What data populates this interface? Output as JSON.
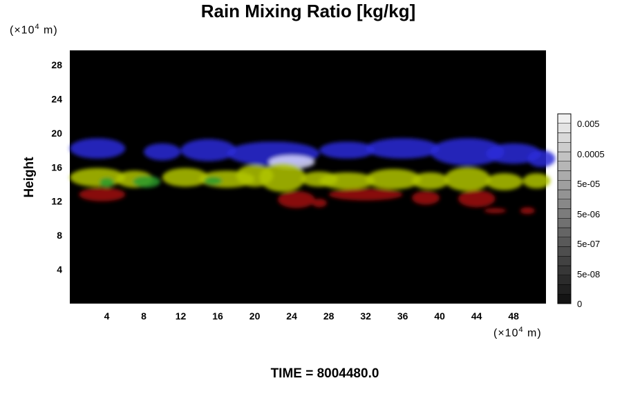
{
  "chart_data": {
    "type": "heatmap",
    "title": "Rain Mixing Ratio [kg/kg]",
    "ylabel": "Height",
    "xlabel": "",
    "x_unit_prefix": "(×10",
    "x_unit_exp": "4",
    "x_unit_suffix": " m)",
    "y_unit_prefix": "(×10",
    "y_unit_exp": "4",
    "y_unit_suffix": " m)",
    "time_label": "TIME = 8004480.0",
    "xlim": [
      0,
      51.5
    ],
    "ylim": [
      0,
      29.7
    ],
    "x_ticks": [
      "4",
      "8",
      "12",
      "16",
      "20",
      "24",
      "28",
      "32",
      "36",
      "40",
      "44",
      "48"
    ],
    "y_ticks": [
      "4",
      "8",
      "12",
      "16",
      "20",
      "24",
      "28"
    ],
    "colorbar_labels": [
      "0.005",
      "0.0005",
      "5e-05",
      "5e-06",
      "5e-07",
      "5e-08",
      "0"
    ],
    "colorbar_levels": 20,
    "background_color": "#000000",
    "layers": [
      {
        "color": "#2a2ad8",
        "blobs": [
          [
            3,
            18.2,
            3,
            1.2
          ],
          [
            10,
            17.8,
            2,
            1
          ],
          [
            15,
            18,
            3,
            1.3
          ],
          [
            22,
            17.6,
            5,
            1.4
          ],
          [
            30,
            18,
            3,
            1
          ],
          [
            36,
            18.2,
            4,
            1.2
          ],
          [
            43,
            17.8,
            4,
            1.6
          ],
          [
            48,
            17.6,
            3,
            1.2
          ],
          [
            51,
            17,
            1.5,
            1
          ]
        ]
      },
      {
        "color": "#d8d8ff",
        "blobs": [
          [
            24,
            16.6,
            2.5,
            0.8
          ]
        ]
      },
      {
        "color": "#b0c400",
        "blobs": [
          [
            3,
            14.8,
            3,
            1.1
          ],
          [
            7,
            14.6,
            2,
            1
          ],
          [
            12.5,
            14.8,
            2.5,
            1.1
          ],
          [
            17,
            14.6,
            3,
            1
          ],
          [
            20,
            15,
            2,
            1.3
          ],
          [
            23,
            14.8,
            2.5,
            1.7
          ],
          [
            27,
            14.6,
            2,
            0.9
          ],
          [
            30,
            14.4,
            3,
            1
          ],
          [
            35,
            14.6,
            3,
            1.2
          ],
          [
            39,
            14.4,
            2,
            1
          ],
          [
            43,
            14.6,
            2.5,
            1.4
          ],
          [
            47,
            14.3,
            2,
            1
          ],
          [
            50.5,
            14.4,
            1.5,
            0.9
          ]
        ]
      },
      {
        "color": "#2a9a2a",
        "blobs": [
          [
            8.3,
            14.3,
            1.5,
            0.7
          ],
          [
            4,
            14.2,
            0.8,
            0.6
          ],
          [
            15.5,
            14.4,
            1,
            0.5
          ]
        ]
      },
      {
        "color": "#a01010",
        "blobs": [
          [
            3.5,
            12.8,
            2.5,
            0.8
          ],
          [
            24.5,
            12.2,
            2,
            1
          ],
          [
            27,
            11.8,
            0.8,
            0.5
          ],
          [
            32,
            12.8,
            4,
            0.7
          ],
          [
            38.5,
            12.4,
            1.5,
            0.8
          ],
          [
            44,
            12.3,
            2,
            1
          ],
          [
            46,
            10.9,
            1.2,
            0.3
          ],
          [
            49.5,
            10.9,
            0.8,
            0.4
          ]
        ]
      }
    ]
  }
}
